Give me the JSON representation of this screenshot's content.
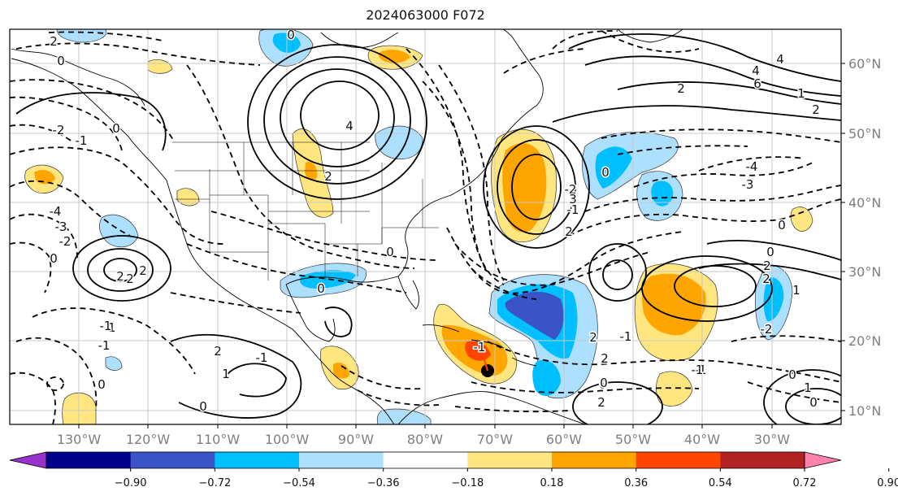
{
  "header": {
    "title": "2024063000 F072"
  },
  "map": {
    "lon_ticks": [
      "130°W",
      "120°W",
      "110°W",
      "100°W",
      "90°W",
      "80°W",
      "70°W",
      "60°W",
      "50°W",
      "40°W",
      "30°W"
    ],
    "lat_ticks": [
      "60°N",
      "50°N",
      "40°N",
      "30°N",
      "20°N",
      "10°N"
    ],
    "contour_labels": [
      "2",
      "0",
      "0",
      "2",
      "4",
      "6",
      "4",
      "2",
      "0",
      "2",
      "-1",
      "-4",
      "-3",
      "-2",
      "0",
      "2",
      "2",
      "-2",
      "-1",
      "0",
      "1",
      "-1",
      "0",
      "2",
      "-1",
      "0",
      "1",
      "4",
      "2",
      "0",
      "-1",
      "-2",
      "3",
      "2",
      "-1",
      "0",
      "0",
      "-1",
      "2",
      "-4",
      "-3",
      "0",
      "2",
      "1",
      "-2",
      "0",
      "0",
      "-1",
      "2",
      "0",
      "0",
      "2",
      "-1",
      "-1",
      "1",
      "2"
    ],
    "colorbar": {
      "ticks": [
        "−0.90",
        "−0.72",
        "−0.54",
        "−0.36",
        "−0.18",
        "0.18",
        "0.36",
        "0.54",
        "0.72",
        "0.90"
      ],
      "colors": [
        "#9932cc",
        "#00008b",
        "#3a54c8",
        "#00bfff",
        "#addfff",
        "#ffffff",
        "#ffe680",
        "#ffa500",
        "#ff4500",
        "#b22222",
        "#ff82ab"
      ]
    },
    "colors": {
      "pos_light": "#ffe680",
      "pos_mid": "#ffa500",
      "pos_strong": "#ff4500",
      "neg_light": "#addfff",
      "neg_mid": "#00bfff",
      "neg_strong": "#3a54c8",
      "marker": "#000000"
    }
  }
}
